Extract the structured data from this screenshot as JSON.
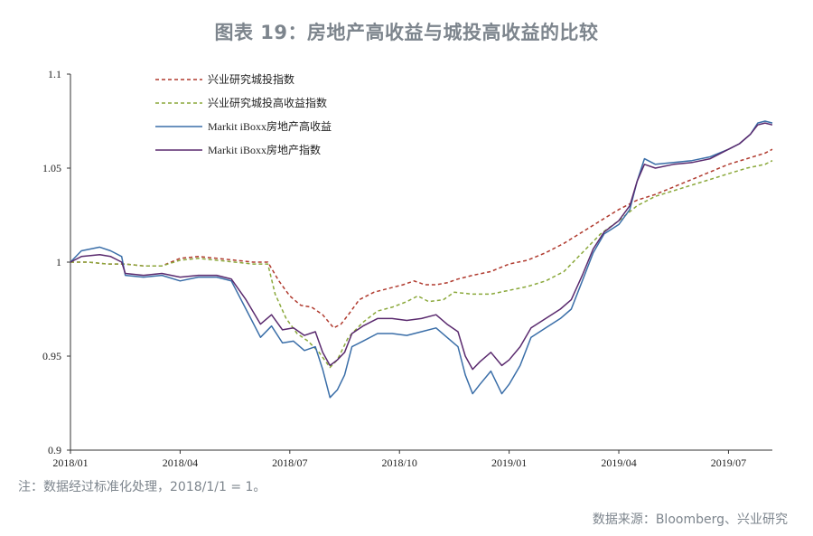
{
  "header": {
    "title": "图表 19：房地产高收益与城投高收益的比较"
  },
  "footer": {
    "note": "注：数据经过标准化处理，2018/1/1 = 1。",
    "source": "数据来源：Bloomberg、兴业研究"
  },
  "chart_data": {
    "type": "line",
    "title": "图表 19：房地产高收益与城投高收益的比较",
    "xlabel": "",
    "ylabel": "",
    "x_ticks": [
      "2018/01",
      "2018/04",
      "2018/07",
      "2018/10",
      "2019/01",
      "2019/04",
      "2019/07"
    ],
    "y_ticks": [
      0.9,
      0.95,
      1,
      1.05,
      1.1
    ],
    "y_tick_labels": [
      "0.9",
      "0.95",
      "1",
      "1.05",
      "1.1"
    ],
    "ylim": [
      0.9,
      1.1
    ],
    "xlim": [
      0,
      19.2
    ],
    "grid": false,
    "legend_position": "top-left",
    "series": [
      {
        "name": "兴业研究城投指数",
        "color": "#b03a2e",
        "dash": "dashed",
        "points": [
          [
            0,
            1.0
          ],
          [
            0.5,
            1.0
          ],
          [
            1,
            0.999
          ],
          [
            1.5,
            0.999
          ],
          [
            2,
            0.998
          ],
          [
            2.5,
            0.998
          ],
          [
            3,
            1.002
          ],
          [
            3.5,
            1.003
          ],
          [
            4,
            1.002
          ],
          [
            4.5,
            1.001
          ],
          [
            5,
            1.0
          ],
          [
            5.4,
            1.0
          ],
          [
            5.7,
            0.99
          ],
          [
            6,
            0.982
          ],
          [
            6.3,
            0.977
          ],
          [
            6.6,
            0.976
          ],
          [
            6.9,
            0.972
          ],
          [
            7.2,
            0.965
          ],
          [
            7.4,
            0.967
          ],
          [
            7.6,
            0.972
          ],
          [
            7.9,
            0.98
          ],
          [
            8.3,
            0.984
          ],
          [
            8.7,
            0.986
          ],
          [
            9.1,
            0.988
          ],
          [
            9.4,
            0.99
          ],
          [
            9.7,
            0.988
          ],
          [
            10,
            0.988
          ],
          [
            10.3,
            0.989
          ],
          [
            10.6,
            0.991
          ],
          [
            11,
            0.993
          ],
          [
            11.5,
            0.995
          ],
          [
            12,
            0.999
          ],
          [
            12.5,
            1.001
          ],
          [
            13,
            1.005
          ],
          [
            13.5,
            1.01
          ],
          [
            14,
            1.016
          ],
          [
            14.5,
            1.022
          ],
          [
            15,
            1.028
          ],
          [
            15.5,
            1.033
          ],
          [
            16,
            1.036
          ],
          [
            16.5,
            1.04
          ],
          [
            17,
            1.044
          ],
          [
            17.5,
            1.048
          ],
          [
            18,
            1.052
          ],
          [
            18.5,
            1.055
          ],
          [
            19,
            1.058
          ],
          [
            19.2,
            1.06
          ]
        ]
      },
      {
        "name": "兴业研究城投高收益指数",
        "color": "#8aa83a",
        "dash": "dashed",
        "points": [
          [
            0,
            1.0
          ],
          [
            0.5,
            1.0
          ],
          [
            1,
            0.999
          ],
          [
            1.5,
            0.999
          ],
          [
            2,
            0.998
          ],
          [
            2.5,
            0.998
          ],
          [
            3,
            1.001
          ],
          [
            3.5,
            1.002
          ],
          [
            4,
            1.001
          ],
          [
            4.5,
            1.0
          ],
          [
            5,
            0.999
          ],
          [
            5.4,
            0.999
          ],
          [
            5.6,
            0.983
          ],
          [
            5.9,
            0.97
          ],
          [
            6.2,
            0.962
          ],
          [
            6.5,
            0.958
          ],
          [
            6.8,
            0.952
          ],
          [
            7.1,
            0.944
          ],
          [
            7.3,
            0.948
          ],
          [
            7.6,
            0.96
          ],
          [
            8,
            0.968
          ],
          [
            8.4,
            0.974
          ],
          [
            8.8,
            0.976
          ],
          [
            9.2,
            0.979
          ],
          [
            9.5,
            0.982
          ],
          [
            9.8,
            0.979
          ],
          [
            10.2,
            0.98
          ],
          [
            10.5,
            0.984
          ],
          [
            11,
            0.983
          ],
          [
            11.5,
            0.983
          ],
          [
            12,
            0.985
          ],
          [
            12.5,
            0.987
          ],
          [
            13,
            0.99
          ],
          [
            13.5,
            0.995
          ],
          [
            14,
            1.005
          ],
          [
            14.5,
            1.015
          ],
          [
            15,
            1.022
          ],
          [
            15.5,
            1.03
          ],
          [
            16,
            1.035
          ],
          [
            16.5,
            1.038
          ],
          [
            17,
            1.041
          ],
          [
            17.5,
            1.044
          ],
          [
            18,
            1.047
          ],
          [
            18.5,
            1.05
          ],
          [
            19,
            1.052
          ],
          [
            19.2,
            1.054
          ]
        ]
      },
      {
        "name": "Markit iBoxx房地产高收益",
        "color": "#3a6ea8",
        "dash": "solid",
        "points": [
          [
            0,
            1.0
          ],
          [
            0.3,
            1.006
          ],
          [
            0.8,
            1.008
          ],
          [
            1.1,
            1.006
          ],
          [
            1.4,
            1.003
          ],
          [
            1.5,
            0.993
          ],
          [
            2,
            0.992
          ],
          [
            2.5,
            0.993
          ],
          [
            3,
            0.99
          ],
          [
            3.5,
            0.992
          ],
          [
            4,
            0.992
          ],
          [
            4.4,
            0.99
          ],
          [
            4.8,
            0.975
          ],
          [
            5.2,
            0.96
          ],
          [
            5.5,
            0.966
          ],
          [
            5.8,
            0.957
          ],
          [
            6.1,
            0.958
          ],
          [
            6.4,
            0.953
          ],
          [
            6.7,
            0.955
          ],
          [
            6.9,
            0.943
          ],
          [
            7.1,
            0.928
          ],
          [
            7.3,
            0.932
          ],
          [
            7.5,
            0.94
          ],
          [
            7.7,
            0.955
          ],
          [
            8,
            0.958
          ],
          [
            8.4,
            0.962
          ],
          [
            8.8,
            0.962
          ],
          [
            9.2,
            0.961
          ],
          [
            9.6,
            0.963
          ],
          [
            10,
            0.965
          ],
          [
            10.3,
            0.96
          ],
          [
            10.6,
            0.955
          ],
          [
            10.8,
            0.94
          ],
          [
            11,
            0.93
          ],
          [
            11.2,
            0.935
          ],
          [
            11.5,
            0.942
          ],
          [
            11.8,
            0.93
          ],
          [
            12,
            0.935
          ],
          [
            12.3,
            0.945
          ],
          [
            12.6,
            0.96
          ],
          [
            13,
            0.965
          ],
          [
            13.4,
            0.97
          ],
          [
            13.7,
            0.975
          ],
          [
            14,
            0.99
          ],
          [
            14.3,
            1.005
          ],
          [
            14.6,
            1.015
          ],
          [
            15,
            1.02
          ],
          [
            15.3,
            1.028
          ],
          [
            15.5,
            1.043
          ],
          [
            15.7,
            1.055
          ],
          [
            16,
            1.052
          ],
          [
            16.5,
            1.053
          ],
          [
            17,
            1.054
          ],
          [
            17.5,
            1.056
          ],
          [
            18,
            1.06
          ],
          [
            18.3,
            1.063
          ],
          [
            18.6,
            1.068
          ],
          [
            18.8,
            1.074
          ],
          [
            19,
            1.075
          ],
          [
            19.2,
            1.074
          ]
        ]
      },
      {
        "name": "Markit iBoxx房地产指数",
        "color": "#5a2a6e",
        "dash": "solid",
        "points": [
          [
            0,
            1.0
          ],
          [
            0.3,
            1.003
          ],
          [
            0.8,
            1.004
          ],
          [
            1.1,
            1.003
          ],
          [
            1.4,
            1.0
          ],
          [
            1.5,
            0.994
          ],
          [
            2,
            0.993
          ],
          [
            2.5,
            0.994
          ],
          [
            3,
            0.992
          ],
          [
            3.5,
            0.993
          ],
          [
            4,
            0.993
          ],
          [
            4.4,
            0.991
          ],
          [
            4.8,
            0.98
          ],
          [
            5.2,
            0.967
          ],
          [
            5.5,
            0.972
          ],
          [
            5.8,
            0.964
          ],
          [
            6.1,
            0.965
          ],
          [
            6.4,
            0.961
          ],
          [
            6.7,
            0.963
          ],
          [
            6.9,
            0.952
          ],
          [
            7.1,
            0.945
          ],
          [
            7.3,
            0.948
          ],
          [
            7.5,
            0.952
          ],
          [
            7.7,
            0.962
          ],
          [
            8,
            0.966
          ],
          [
            8.4,
            0.97
          ],
          [
            8.8,
            0.97
          ],
          [
            9.2,
            0.969
          ],
          [
            9.6,
            0.97
          ],
          [
            10,
            0.972
          ],
          [
            10.3,
            0.967
          ],
          [
            10.6,
            0.963
          ],
          [
            10.8,
            0.95
          ],
          [
            11,
            0.943
          ],
          [
            11.2,
            0.947
          ],
          [
            11.5,
            0.952
          ],
          [
            11.8,
            0.945
          ],
          [
            12,
            0.948
          ],
          [
            12.3,
            0.955
          ],
          [
            12.6,
            0.965
          ],
          [
            13,
            0.97
          ],
          [
            13.4,
            0.975
          ],
          [
            13.7,
            0.98
          ],
          [
            14,
            0.993
          ],
          [
            14.3,
            1.007
          ],
          [
            14.6,
            1.016
          ],
          [
            15,
            1.022
          ],
          [
            15.3,
            1.03
          ],
          [
            15.5,
            1.043
          ],
          [
            15.7,
            1.052
          ],
          [
            16,
            1.05
          ],
          [
            16.5,
            1.052
          ],
          [
            17,
            1.053
          ],
          [
            17.5,
            1.055
          ],
          [
            18,
            1.06
          ],
          [
            18.3,
            1.063
          ],
          [
            18.6,
            1.068
          ],
          [
            18.8,
            1.073
          ],
          [
            19,
            1.074
          ],
          [
            19.2,
            1.073
          ]
        ]
      }
    ]
  }
}
